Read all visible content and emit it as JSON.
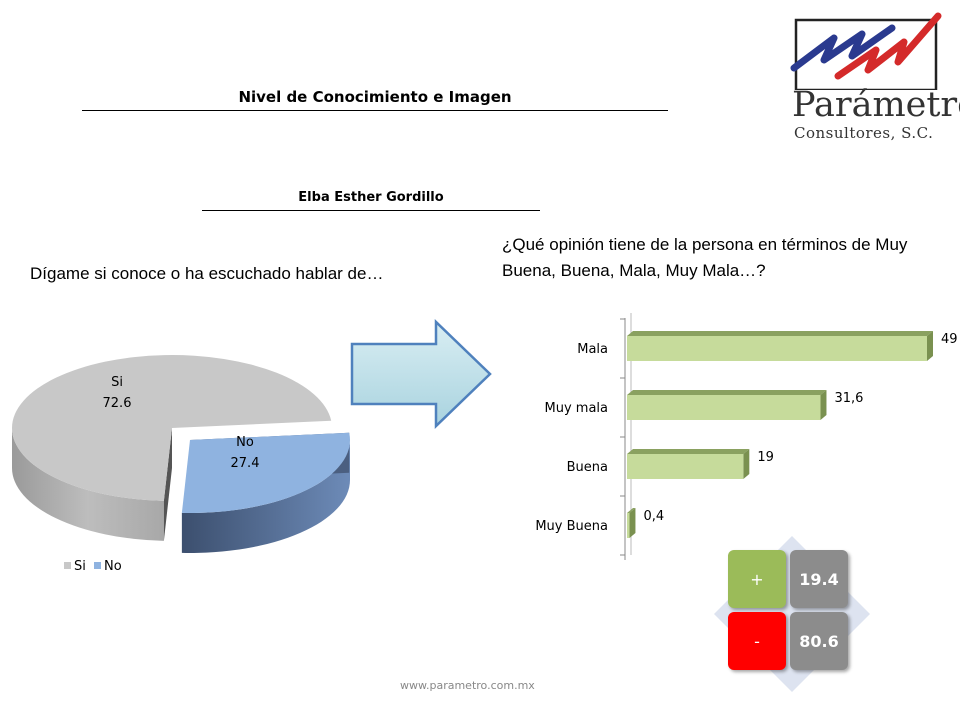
{
  "header": {
    "title": "Nivel de Conocimiento  e Imagen",
    "subtitle": "Elba Esther Gordillo"
  },
  "logo": {
    "name": "Parámetro",
    "sub": "Consultores, S.C."
  },
  "questions": {
    "awareness": "Dígame si conoce o ha escuchado hablar de…",
    "opinion": "¿Qué opinión tiene de la persona en términos de Muy Buena, Buena, Mala, Muy Mala…?"
  },
  "footer": "www.parametro.com.mx",
  "summary": {
    "positive": {
      "symbol": "+",
      "value": "19.4"
    },
    "negative": {
      "symbol": "-",
      "value": "80.6"
    }
  },
  "colors": {
    "pie_si": "#c8c8c8",
    "pie_no": "#8fb3e0",
    "bar": "#c6db9b",
    "bar_dark": "#8aa160",
    "plus": "#9bbb59",
    "minus": "#ff0000",
    "value_box": "#8c8c8c"
  },
  "icons": {
    "arrow": "right-arrow-icon"
  },
  "chart_data": [
    {
      "type": "pie",
      "categories": [
        "Si",
        "No"
      ],
      "values": [
        72.6,
        27.4
      ],
      "legend": [
        "Si",
        "No"
      ],
      "legend_position": "bottom-left",
      "style": "3d exploded"
    },
    {
      "type": "bar",
      "orientation": "horizontal",
      "categories": [
        "Mala",
        "Muy mala",
        "Buena",
        "Muy Buena"
      ],
      "values": [
        49,
        31.6,
        19,
        0.4
      ],
      "value_labels": [
        "49",
        "31,6",
        "19",
        "0,4"
      ],
      "style": "3d",
      "grid": false
    }
  ]
}
